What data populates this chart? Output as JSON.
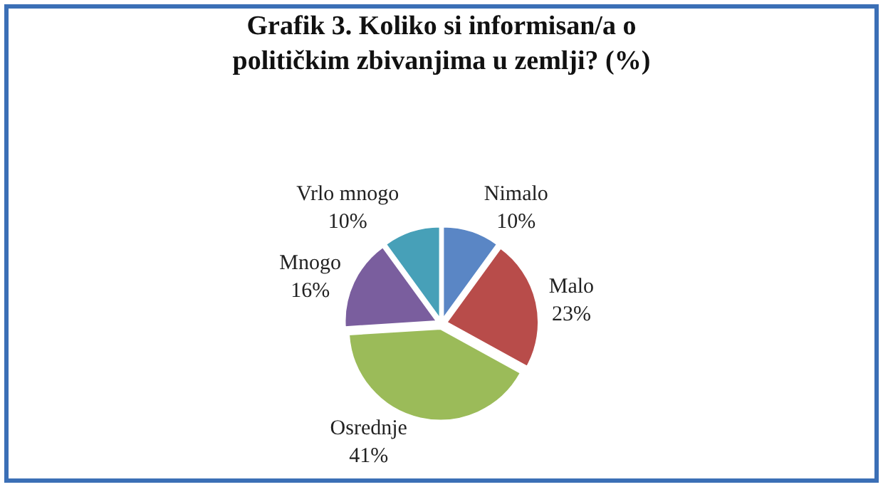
{
  "chart_data": {
    "type": "pie",
    "title": "Grafik 3. Koliko si informisan/a o\npolitičkim zbivanjima u zemlji? (%)",
    "categories": [
      "Nimalo",
      "Malo",
      "Osrednje",
      "Mnogo",
      "Vrlo mnogo"
    ],
    "values": [
      10,
      23,
      41,
      16,
      10
    ],
    "value_labels": [
      "10%",
      "23%",
      "41%",
      "16%",
      "10%"
    ],
    "colors": [
      "#5a86c5",
      "#b84c4a",
      "#9bbb59",
      "#7a5e9e",
      "#47a0b8"
    ],
    "legend": false
  }
}
